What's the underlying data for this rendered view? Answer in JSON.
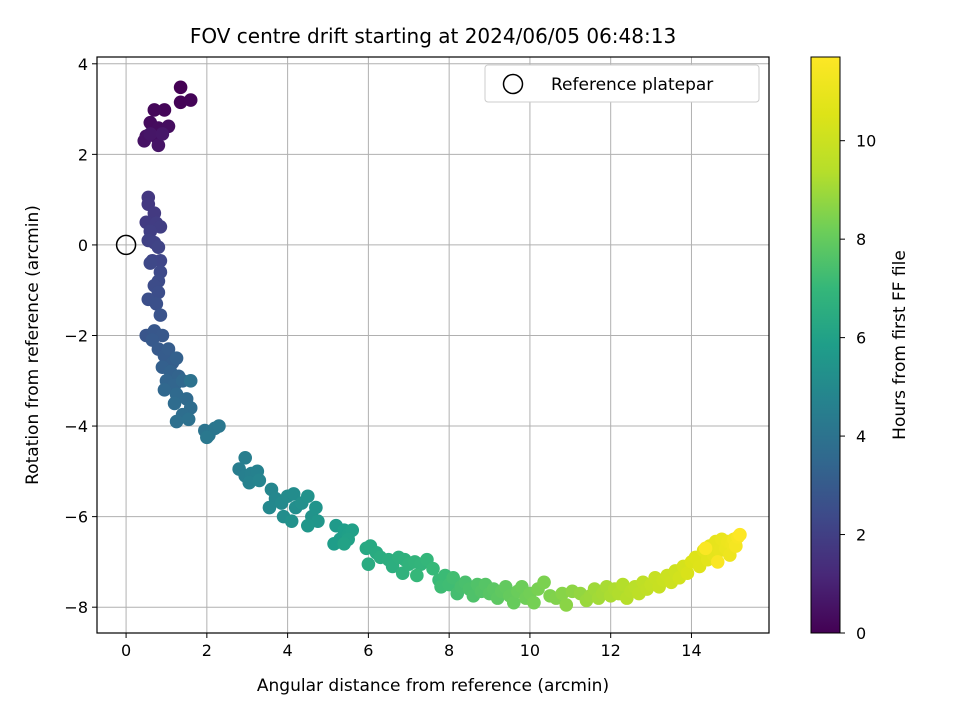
{
  "chart_data": {
    "type": "scatter",
    "title": "FOV centre drift starting at 2024/06/05 06:48:13",
    "xlabel": "Angular distance from reference (arcmin)",
    "ylabel": "Rotation from reference (arcmin)",
    "xlim": [
      -0.72,
      15.92
    ],
    "ylim": [
      -8.57,
      4.15
    ],
    "xticks": [
      0,
      2,
      4,
      6,
      8,
      10,
      12,
      14
    ],
    "yticks": [
      -8,
      -6,
      -4,
      -2,
      0,
      2,
      4
    ],
    "grid": true,
    "legend": {
      "placement": "top-right",
      "entries": [
        "Reference platepar"
      ]
    },
    "reference_point": {
      "x": 0,
      "y": 0,
      "label": "Reference platepar"
    },
    "colorbar": {
      "label": "Hours from first FF file",
      "colormap": "viridis",
      "range": [
        0,
        11.7
      ],
      "ticks": [
        0,
        2,
        4,
        6,
        8,
        10
      ]
    },
    "series": [
      {
        "points_xyc": [
          [
            1.35,
            3.48,
            0.0
          ],
          [
            1.35,
            3.15,
            0.05
          ],
          [
            1.6,
            3.2,
            0.1
          ],
          [
            0.95,
            2.98,
            0.15
          ],
          [
            0.7,
            2.98,
            0.2
          ],
          [
            0.6,
            2.7,
            0.28
          ],
          [
            0.8,
            2.58,
            0.32
          ],
          [
            1.05,
            2.62,
            0.36
          ],
          [
            0.75,
            2.38,
            0.42
          ],
          [
            0.5,
            2.4,
            0.48
          ],
          [
            0.45,
            2.3,
            0.52
          ],
          [
            0.8,
            2.2,
            0.58
          ],
          [
            0.6,
            2.45,
            0.62
          ],
          [
            0.9,
            2.45,
            0.66
          ],
          [
            0.55,
            1.05,
            1.7
          ],
          [
            0.55,
            0.9,
            1.75
          ],
          [
            0.7,
            0.7,
            1.8
          ],
          [
            0.5,
            0.5,
            1.85
          ],
          [
            0.75,
            0.48,
            1.9
          ],
          [
            0.85,
            0.4,
            1.95
          ],
          [
            0.6,
            0.3,
            2.0
          ],
          [
            0.55,
            0.1,
            2.05
          ],
          [
            0.7,
            0.05,
            2.1
          ],
          [
            0.8,
            -0.05,
            2.15
          ],
          [
            0.65,
            -0.35,
            2.2
          ],
          [
            0.85,
            -0.35,
            2.25
          ],
          [
            0.6,
            -0.4,
            2.3
          ],
          [
            0.85,
            -0.6,
            2.35
          ],
          [
            0.8,
            -0.8,
            2.4
          ],
          [
            0.7,
            -0.9,
            2.45
          ],
          [
            0.8,
            -1.05,
            2.5
          ],
          [
            0.55,
            -1.2,
            2.55
          ],
          [
            0.75,
            -1.3,
            2.6
          ],
          [
            0.85,
            -1.55,
            2.7
          ],
          [
            0.5,
            -2.0,
            2.8
          ],
          [
            0.7,
            -1.9,
            2.85
          ],
          [
            0.9,
            -2.0,
            2.9
          ],
          [
            0.65,
            -2.1,
            2.95
          ],
          [
            0.8,
            -2.3,
            3.0
          ],
          [
            0.95,
            -2.45,
            3.05
          ],
          [
            1.05,
            -2.3,
            3.1
          ],
          [
            1.15,
            -2.6,
            3.15
          ],
          [
            0.9,
            -2.7,
            3.2
          ],
          [
            1.25,
            -2.5,
            3.25
          ],
          [
            1.1,
            -2.8,
            3.3
          ],
          [
            1.3,
            -2.9,
            3.35
          ],
          [
            1.0,
            -3.0,
            3.4
          ],
          [
            1.2,
            -3.1,
            3.45
          ],
          [
            0.95,
            -3.2,
            3.5
          ],
          [
            1.4,
            -3.0,
            3.55
          ],
          [
            1.25,
            -3.3,
            3.6
          ],
          [
            1.5,
            -3.4,
            3.65
          ],
          [
            1.2,
            -3.5,
            3.7
          ],
          [
            1.6,
            -3.6,
            3.75
          ],
          [
            1.4,
            -3.75,
            3.8
          ],
          [
            1.25,
            -3.9,
            3.85
          ],
          [
            1.55,
            -3.85,
            3.9
          ],
          [
            1.6,
            -3.0,
            3.95
          ],
          [
            1.95,
            -4.1,
            4.05
          ],
          [
            2.05,
            -4.2,
            4.1
          ],
          [
            2.2,
            -4.05,
            4.15
          ],
          [
            2.3,
            -4.0,
            4.2
          ],
          [
            2.0,
            -4.25,
            4.25
          ],
          [
            2.8,
            -4.95,
            4.45
          ],
          [
            2.95,
            -4.7,
            4.5
          ],
          [
            2.95,
            -5.1,
            4.55
          ],
          [
            3.1,
            -5.05,
            4.6
          ],
          [
            3.25,
            -5.0,
            4.65
          ],
          [
            3.05,
            -5.25,
            4.7
          ],
          [
            3.3,
            -5.2,
            4.75
          ],
          [
            3.6,
            -5.4,
            4.85
          ],
          [
            3.7,
            -5.6,
            4.9
          ],
          [
            3.55,
            -5.8,
            4.95
          ],
          [
            3.85,
            -5.7,
            5.0
          ],
          [
            4.0,
            -5.55,
            5.05
          ],
          [
            4.15,
            -5.5,
            5.1
          ],
          [
            3.9,
            -6.0,
            5.15
          ],
          [
            4.2,
            -5.8,
            5.2
          ],
          [
            4.35,
            -5.7,
            5.25
          ],
          [
            4.1,
            -6.1,
            5.3
          ],
          [
            4.5,
            -5.55,
            5.35
          ],
          [
            4.6,
            -6.0,
            5.4
          ],
          [
            4.7,
            -5.8,
            5.45
          ],
          [
            4.75,
            -6.1,
            5.5
          ],
          [
            4.5,
            -6.2,
            5.55
          ],
          [
            5.2,
            -6.2,
            5.7
          ],
          [
            5.3,
            -6.5,
            5.75
          ],
          [
            5.15,
            -6.6,
            5.8
          ],
          [
            5.4,
            -6.3,
            5.85
          ],
          [
            5.5,
            -6.4,
            5.9
          ],
          [
            5.6,
            -6.3,
            5.95
          ],
          [
            5.5,
            -6.5,
            6.0
          ],
          [
            5.4,
            -6.6,
            6.05
          ],
          [
            5.95,
            -6.7,
            6.3
          ],
          [
            6.05,
            -6.65,
            6.35
          ],
          [
            6.2,
            -6.8,
            6.4
          ],
          [
            6.0,
            -7.05,
            6.45
          ],
          [
            6.3,
            -6.9,
            6.5
          ],
          [
            6.5,
            -6.95,
            6.55
          ],
          [
            6.6,
            -7.1,
            6.6
          ],
          [
            6.75,
            -6.9,
            6.65
          ],
          [
            6.9,
            -6.95,
            6.7
          ],
          [
            6.85,
            -7.25,
            6.75
          ],
          [
            7.0,
            -7.05,
            6.8
          ],
          [
            7.15,
            -7.0,
            6.85
          ],
          [
            7.3,
            -7.05,
            6.9
          ],
          [
            7.45,
            -6.95,
            6.95
          ],
          [
            7.2,
            -7.3,
            7.0
          ],
          [
            7.6,
            -7.15,
            7.05
          ],
          [
            7.75,
            -7.4,
            7.1
          ],
          [
            7.9,
            -7.3,
            7.15
          ],
          [
            7.8,
            -7.55,
            7.2
          ],
          [
            8.0,
            -7.5,
            7.25
          ],
          [
            8.1,
            -7.35,
            7.3
          ],
          [
            8.2,
            -7.7,
            7.35
          ],
          [
            8.3,
            -7.55,
            7.4
          ],
          [
            8.4,
            -7.45,
            7.45
          ],
          [
            8.5,
            -7.6,
            7.5
          ],
          [
            8.6,
            -7.75,
            7.55
          ],
          [
            8.7,
            -7.5,
            7.6
          ],
          [
            8.8,
            -7.65,
            7.65
          ],
          [
            8.9,
            -7.5,
            7.7
          ],
          [
            9.0,
            -7.7,
            7.75
          ],
          [
            9.1,
            -7.6,
            7.8
          ],
          [
            9.2,
            -7.8,
            7.85
          ],
          [
            9.3,
            -7.65,
            7.9
          ],
          [
            9.4,
            -7.55,
            7.95
          ],
          [
            9.5,
            -7.75,
            8.0
          ],
          [
            9.6,
            -7.9,
            8.05
          ],
          [
            9.7,
            -7.65,
            8.1
          ],
          [
            9.8,
            -7.55,
            8.15
          ],
          [
            9.9,
            -7.8,
            8.2
          ],
          [
            10.0,
            -7.7,
            8.25
          ],
          [
            10.1,
            -7.9,
            8.3
          ],
          [
            10.2,
            -7.6,
            8.35
          ],
          [
            10.35,
            -7.45,
            8.4
          ],
          [
            10.5,
            -7.75,
            8.45
          ],
          [
            10.65,
            -7.8,
            8.5
          ],
          [
            10.8,
            -7.7,
            8.6
          ],
          [
            10.9,
            -7.95,
            8.65
          ],
          [
            11.05,
            -7.65,
            8.7
          ],
          [
            11.25,
            -7.7,
            8.8
          ],
          [
            11.4,
            -7.85,
            8.9
          ],
          [
            11.5,
            -7.75,
            8.95
          ],
          [
            11.6,
            -7.6,
            9.0
          ],
          [
            11.7,
            -7.8,
            9.05
          ],
          [
            11.8,
            -7.7,
            9.1
          ],
          [
            11.9,
            -7.55,
            9.15
          ],
          [
            12.0,
            -7.75,
            9.2
          ],
          [
            12.1,
            -7.6,
            9.25
          ],
          [
            12.2,
            -7.7,
            9.3
          ],
          [
            12.3,
            -7.5,
            9.35
          ],
          [
            12.4,
            -7.8,
            9.4
          ],
          [
            12.5,
            -7.65,
            9.45
          ],
          [
            12.6,
            -7.55,
            9.5
          ],
          [
            12.7,
            -7.7,
            9.6
          ],
          [
            12.8,
            -7.45,
            9.65
          ],
          [
            12.9,
            -7.6,
            9.7
          ],
          [
            13.0,
            -7.5,
            9.8
          ],
          [
            13.1,
            -7.35,
            9.85
          ],
          [
            13.2,
            -7.55,
            9.9
          ],
          [
            13.3,
            -7.4,
            9.95
          ],
          [
            13.4,
            -7.3,
            10.0
          ],
          [
            13.5,
            -7.45,
            10.05
          ],
          [
            13.6,
            -7.2,
            10.1
          ],
          [
            13.7,
            -7.35,
            10.2
          ],
          [
            13.8,
            -7.1,
            10.3
          ],
          [
            13.9,
            -7.25,
            10.4
          ],
          [
            14.0,
            -7.0,
            10.5
          ],
          [
            14.1,
            -6.9,
            10.55
          ],
          [
            14.2,
            -7.1,
            10.6
          ],
          [
            14.3,
            -6.75,
            10.7
          ],
          [
            14.4,
            -6.95,
            10.75
          ],
          [
            14.45,
            -6.65,
            10.8
          ],
          [
            14.55,
            -6.85,
            10.85
          ],
          [
            14.6,
            -6.55,
            10.9
          ],
          [
            14.7,
            -6.75,
            10.95
          ],
          [
            14.75,
            -6.5,
            11.0
          ],
          [
            14.85,
            -6.7,
            11.05
          ],
          [
            14.9,
            -6.55,
            11.1
          ],
          [
            14.95,
            -6.85,
            11.15
          ],
          [
            15.0,
            -6.6,
            11.2
          ],
          [
            15.05,
            -6.5,
            11.3
          ],
          [
            15.1,
            -6.65,
            11.4
          ],
          [
            15.15,
            -6.45,
            11.5
          ],
          [
            14.65,
            -7.0,
            11.55
          ],
          [
            14.35,
            -6.7,
            11.6
          ],
          [
            15.2,
            -6.4,
            11.7
          ]
        ]
      }
    ]
  }
}
